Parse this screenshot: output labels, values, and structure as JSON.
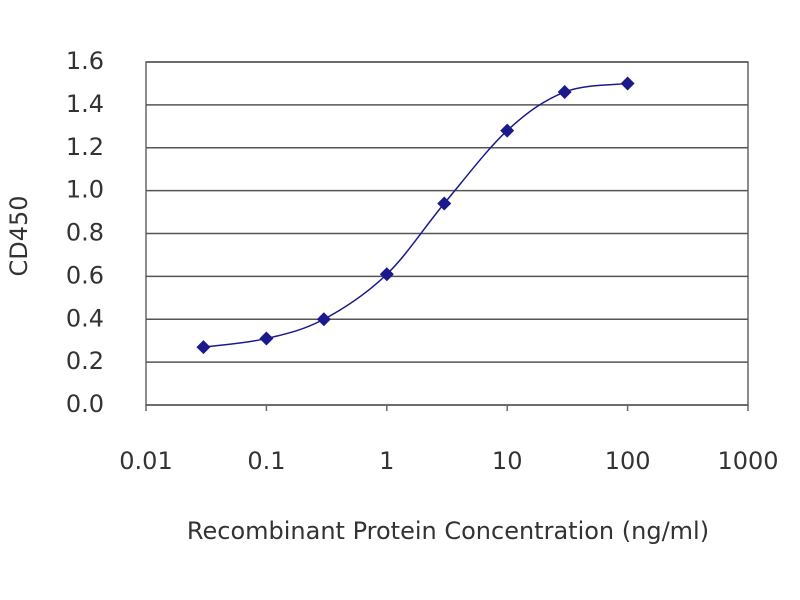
{
  "chart_data": {
    "type": "line",
    "x_label": "Recombinant Protein Concentration (ng/ml)",
    "y_label": "CD450",
    "x": [
      0.03,
      0.1,
      0.3,
      1,
      3,
      10,
      30,
      100
    ],
    "series": [
      {
        "name": "CD450",
        "color": "#1a1a8c",
        "values": [
          0.27,
          0.31,
          0.4,
          0.61,
          0.94,
          1.28,
          1.46,
          1.5
        ]
      }
    ],
    "xscale": "log",
    "xlim": [
      0.01,
      1000
    ],
    "xticks": [
      0.01,
      0.1,
      1,
      10,
      100,
      1000
    ],
    "ylim": [
      0,
      1.6
    ],
    "yticks": [
      {
        "value": 0,
        "label": "0.0"
      },
      0.2,
      0.4,
      0.6,
      0.8,
      {
        "value": 1,
        "label": "1.0"
      },
      1.2,
      1.4,
      1.6
    ],
    "grid": true
  }
}
